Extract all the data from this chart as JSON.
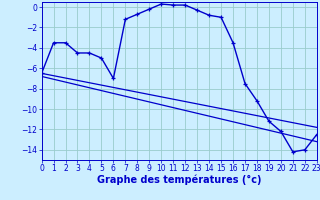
{
  "background_color": "#cceeff",
  "grid_color": "#99cccc",
  "line_color": "#0000cc",
  "xlabel": "Graphe des températures (°c)",
  "xlim": [
    0,
    23
  ],
  "ylim": [
    -15,
    0.5
  ],
  "yticks": [
    0,
    -2,
    -4,
    -6,
    -8,
    -10,
    -12,
    -14
  ],
  "xticks": [
    0,
    1,
    2,
    3,
    4,
    5,
    6,
    7,
    8,
    9,
    10,
    11,
    12,
    13,
    14,
    15,
    16,
    17,
    18,
    19,
    20,
    21,
    22,
    23
  ],
  "main_x": [
    0,
    1,
    2,
    3,
    4,
    5,
    6,
    7,
    8,
    9,
    10,
    11,
    12,
    13,
    14,
    15,
    16,
    17,
    18,
    19,
    20,
    21,
    22,
    23
  ],
  "main_y": [
    -6.5,
    -3.5,
    -3.5,
    -4.5,
    -4.5,
    -5.0,
    -7.0,
    -1.2,
    -0.7,
    -0.2,
    0.3,
    0.2,
    0.2,
    -0.3,
    -0.8,
    -1.0,
    -3.5,
    -7.5,
    -9.2,
    -11.2,
    -12.2,
    -14.2,
    -14.0,
    -12.5
  ],
  "trend1_x": [
    0,
    23
  ],
  "trend1_y": [
    -6.5,
    -11.8
  ],
  "trend2_x": [
    0,
    23
  ],
  "trend2_y": [
    -6.8,
    -13.2
  ],
  "xlabel_fontsize": 7,
  "tick_fontsize": 5.5,
  "linewidth_main": 1.0,
  "linewidth_trend": 0.9,
  "marker_size": 3.5
}
